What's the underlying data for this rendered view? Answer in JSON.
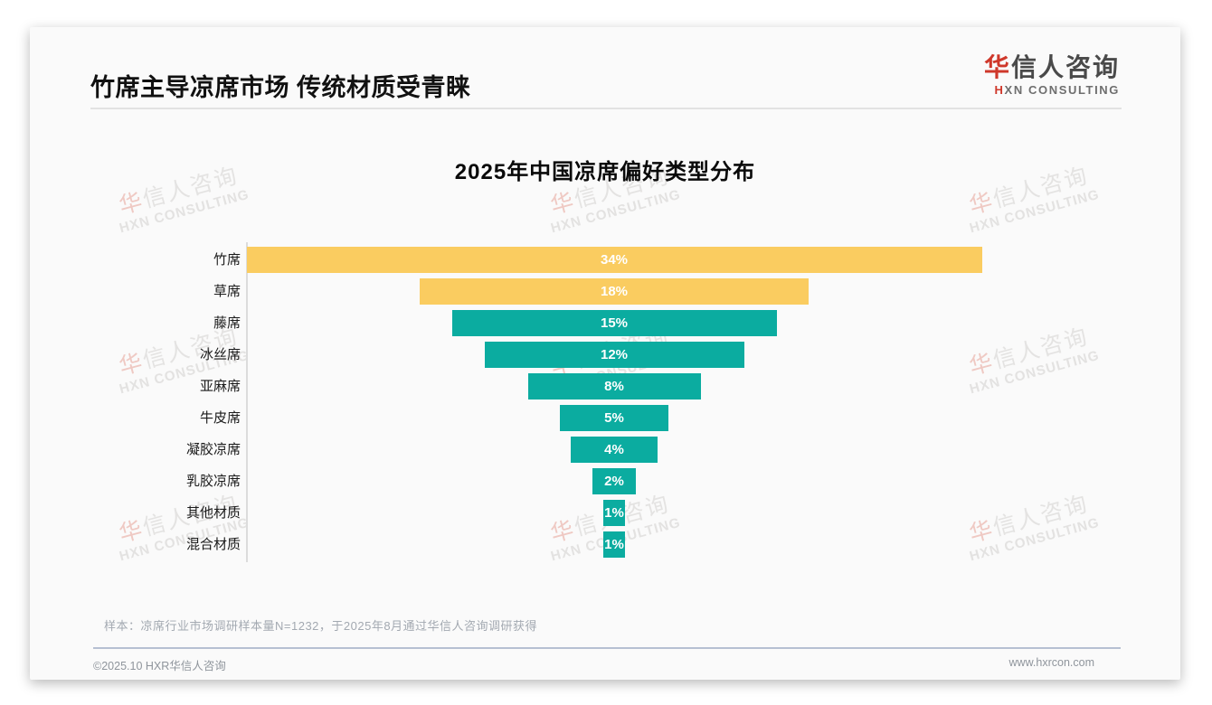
{
  "page": {
    "header": {
      "title": "竹席主导凉席市场 传统材质受青睐"
    },
    "logo": {
      "cn_first": "华",
      "cn_rest": "信人咨询",
      "en_first": "H",
      "en_rest": "XN CONSULTING"
    },
    "watermark": {
      "cn_first": "华",
      "cn_rest": "信人咨询",
      "en": "HXN CONSULTING"
    },
    "note": "样本：凉席行业市场调研样本量N=1232，于2025年8月通过华信人咨询调研获得",
    "footer": {
      "left": "©2025.10 HXR华信人咨询",
      "right": "www.hxrcon.com"
    }
  },
  "chart_data": {
    "type": "bar",
    "variant": "centered-horizontal-funnel",
    "title": "2025年中国凉席偏好类型分布",
    "categories": [
      "竹席",
      "草席",
      "藤席",
      "冰丝席",
      "亚麻席",
      "牛皮席",
      "凝胶凉席",
      "乳胶凉席",
      "其他材质",
      "混合材质"
    ],
    "values": [
      34,
      18,
      15,
      12,
      8,
      5,
      4,
      2,
      1,
      1
    ],
    "value_labels": [
      "34%",
      "18%",
      "15%",
      "12%",
      "8%",
      "5%",
      "4%",
      "2%",
      "1%",
      "1%"
    ],
    "unit": "%",
    "xlim": [
      0,
      34
    ],
    "grid": false,
    "legend": false,
    "colors": {
      "highlight": "#FACC60",
      "default": "#0BACA0",
      "highlight_count": 2,
      "value_label": "#ffffff"
    }
  }
}
